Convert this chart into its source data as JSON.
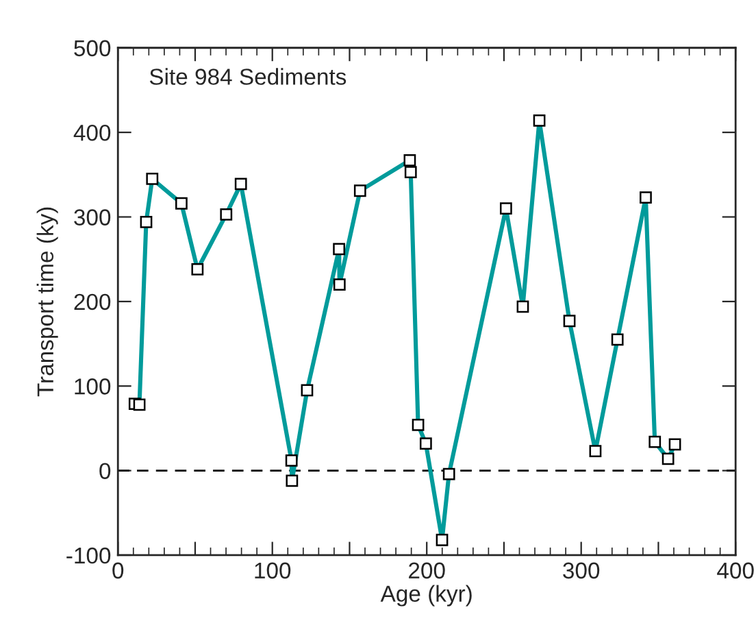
{
  "chart_data": {
    "type": "line",
    "xlabel": "Age (kyr)",
    "ylabel": "Transport time (ky)",
    "annotations": [
      "Site 984 Sediments"
    ],
    "series": [
      {
        "color": "#009b9b",
        "x": [
          10.9,
          13.9,
          18.3,
          22.2,
          41.1,
          51.5,
          70.1,
          79.6,
          112.4,
          112.7,
          122.5,
          143.2,
          143.5,
          156.8,
          189,
          189.6,
          194.4,
          199.4,
          209.9,
          214.4,
          251.3,
          262.2,
          272.9,
          292.4,
          309.2,
          323.5,
          341.8,
          347.7,
          356.3,
          360.7
        ],
        "values": [
          79,
          78,
          294,
          345,
          316,
          238,
          303,
          339,
          12,
          -12,
          95,
          262,
          220,
          331,
          367,
          353,
          54,
          32,
          -82,
          -4,
          310,
          194,
          414,
          177,
          23,
          155,
          323,
          34,
          14,
          31
        ]
      }
    ],
    "marker": "square",
    "line_style": "solid",
    "xlim": [
      0,
      400
    ],
    "xticks": [
      0,
      {
        "value": 50,
        "label": null
      },
      100,
      {
        "value": 150,
        "label": null
      },
      200,
      {
        "value": 250,
        "label": null
      },
      300,
      {
        "value": 350,
        "label": null
      },
      400
    ],
    "ylim": [
      -100,
      500
    ],
    "yticks": [
      -100,
      0,
      100,
      200,
      300,
      400,
      500
    ],
    "ref_lines": [
      {
        "axis": "y",
        "value": 0,
        "color": "#000000",
        "line_style": "dashed"
      }
    ],
    "grid": false,
    "legend": false
  }
}
